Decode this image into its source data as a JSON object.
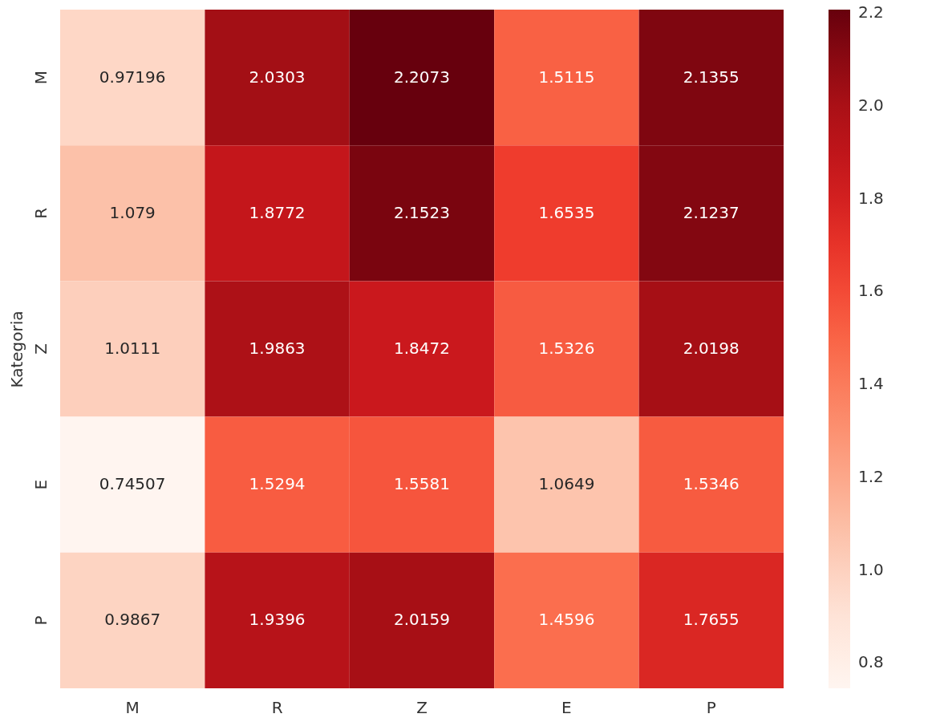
{
  "chart_data": {
    "type": "heatmap",
    "ylabel": "Kategoria",
    "categories": [
      "M",
      "R",
      "Z",
      "E",
      "P"
    ],
    "y_categories": [
      "M",
      "R",
      "Z",
      "E",
      "P"
    ],
    "cells": [
      [
        0.97196,
        2.0303,
        2.2073,
        1.5115,
        2.1355
      ],
      [
        1.079,
        1.8772,
        2.1523,
        1.6535,
        2.1237
      ],
      [
        1.0111,
        1.9863,
        1.8472,
        1.5326,
        2.0198
      ],
      [
        0.74507,
        1.5294,
        1.5581,
        1.0649,
        1.5346
      ],
      [
        0.9867,
        1.9396,
        2.0159,
        1.4596,
        1.7655
      ]
    ],
    "data_labels": true,
    "clim": [
      0.74507,
      2.2073
    ],
    "cticks": [
      0.8,
      {
        "value": 1,
        "label": "1.0"
      },
      1.2,
      1.4,
      1.6,
      1.8,
      {
        "value": 2,
        "label": "2.0"
      },
      2.2
    ]
  }
}
